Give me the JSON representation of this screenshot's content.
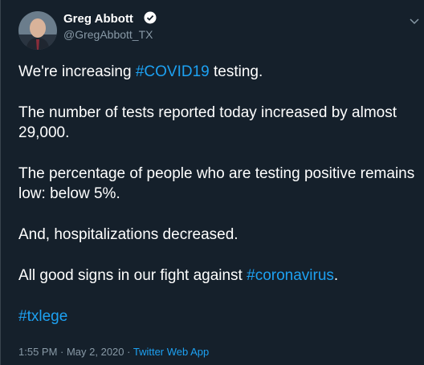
{
  "author": {
    "name": "Greg Abbott",
    "handle": "@GregAbbott_TX"
  },
  "paragraphs": [
    [
      "We're increasing ",
      {
        "hashtag": "#COVID19"
      },
      " testing."
    ],
    [
      "The number of tests reported today increased by almost 29,000."
    ],
    [
      "The percentage of people who are testing positive remains low: below 5%."
    ],
    [
      "And, hospitalizations decreased."
    ],
    [
      "All good signs in our fight against ",
      {
        "hashtag": "#coronavirus"
      },
      "."
    ],
    [
      {
        "hashtag": "#txlege"
      }
    ]
  ],
  "timestamp": "1:55 PM · May 2, 2020 ·",
  "source": "Twitter Web App"
}
